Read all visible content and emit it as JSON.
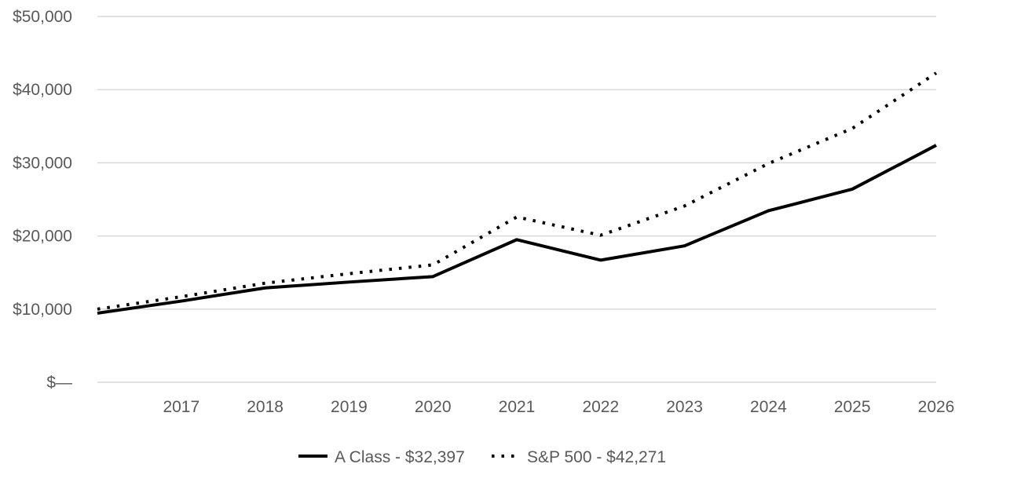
{
  "chart_data": {
    "type": "line",
    "title": "",
    "xlabel": "",
    "ylabel": "",
    "x": [
      "2016",
      "2017",
      "2018",
      "2019",
      "2020",
      "2021",
      "2022",
      "2023",
      "2024",
      "2025",
      "2026"
    ],
    "x_tick_labels": [
      "2017",
      "2018",
      "2019",
      "2020",
      "2021",
      "2022",
      "2023",
      "2024",
      "2025",
      "2026"
    ],
    "ylim": [
      0,
      50000
    ],
    "y_ticks": [
      0,
      10000,
      20000,
      30000,
      40000,
      50000
    ],
    "y_tick_labels": [
      "$—",
      "$10,000",
      "$20,000",
      "$30,000",
      "$40,000",
      "$50,000"
    ],
    "grid": true,
    "legend_position": "bottom",
    "series": [
      {
        "name": "A Class - $32,397",
        "style": "solid",
        "color": "#000000",
        "values": [
          9450,
          11100,
          12900,
          13700,
          14450,
          19500,
          16700,
          18650,
          23450,
          26400,
          32397
        ]
      },
      {
        "name": "S&P 500 - $42,271",
        "style": "dotted",
        "color": "#000000",
        "values": [
          10000,
          11700,
          13550,
          14850,
          16050,
          22600,
          20100,
          24100,
          29900,
          34700,
          42271
        ]
      }
    ]
  }
}
